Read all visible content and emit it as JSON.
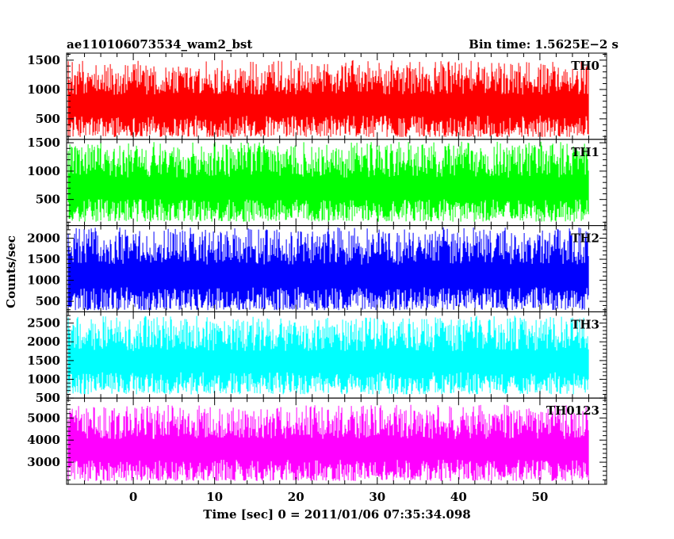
{
  "header": {
    "left": "ae110106073534_wam2_bst",
    "right": "Bin time: 1.5625E−2 s"
  },
  "chart_data": {
    "type": "line",
    "xlabel": "Time [sec] 0 = 2011/01/06 07:35:34.098",
    "ylabel": "Counts/sec",
    "xlim": [
      -8.2,
      58.2
    ],
    "xticks": [
      0,
      10,
      20,
      30,
      40,
      50
    ],
    "x_range": [
      -8.0,
      56.0
    ],
    "bin_time": 0.015625,
    "panels": [
      {
        "label": "TH0",
        "color": "#ff0000",
        "ylim": [
          150,
          1620
        ],
        "yticks": [
          500,
          1000,
          1500
        ],
        "band": [
          190,
          1500
        ]
      },
      {
        "label": "TH1",
        "color": "#00ff00",
        "ylim": [
          40,
          1560
        ],
        "yticks": [
          500,
          1000,
          1500
        ],
        "band": [
          110,
          1520
        ]
      },
      {
        "label": "TH2",
        "color": "#0000ff",
        "ylim": [
          250,
          2300
        ],
        "yticks": [
          500,
          1000,
          1500,
          2000
        ],
        "band": [
          290,
          2260
        ]
      },
      {
        "label": "TH3",
        "color": "#00ffff",
        "ylim": [
          500,
          2800
        ],
        "yticks": [
          500,
          1000,
          1500,
          2000,
          2500
        ],
        "band": [
          600,
          2700
        ]
      },
      {
        "label": "TH0123",
        "color": "#ff00ff",
        "ylim": [
          2000,
          5900
        ],
        "yticks": [
          3000,
          4000,
          5000
        ],
        "band": [
          2150,
          5600
        ]
      }
    ]
  }
}
